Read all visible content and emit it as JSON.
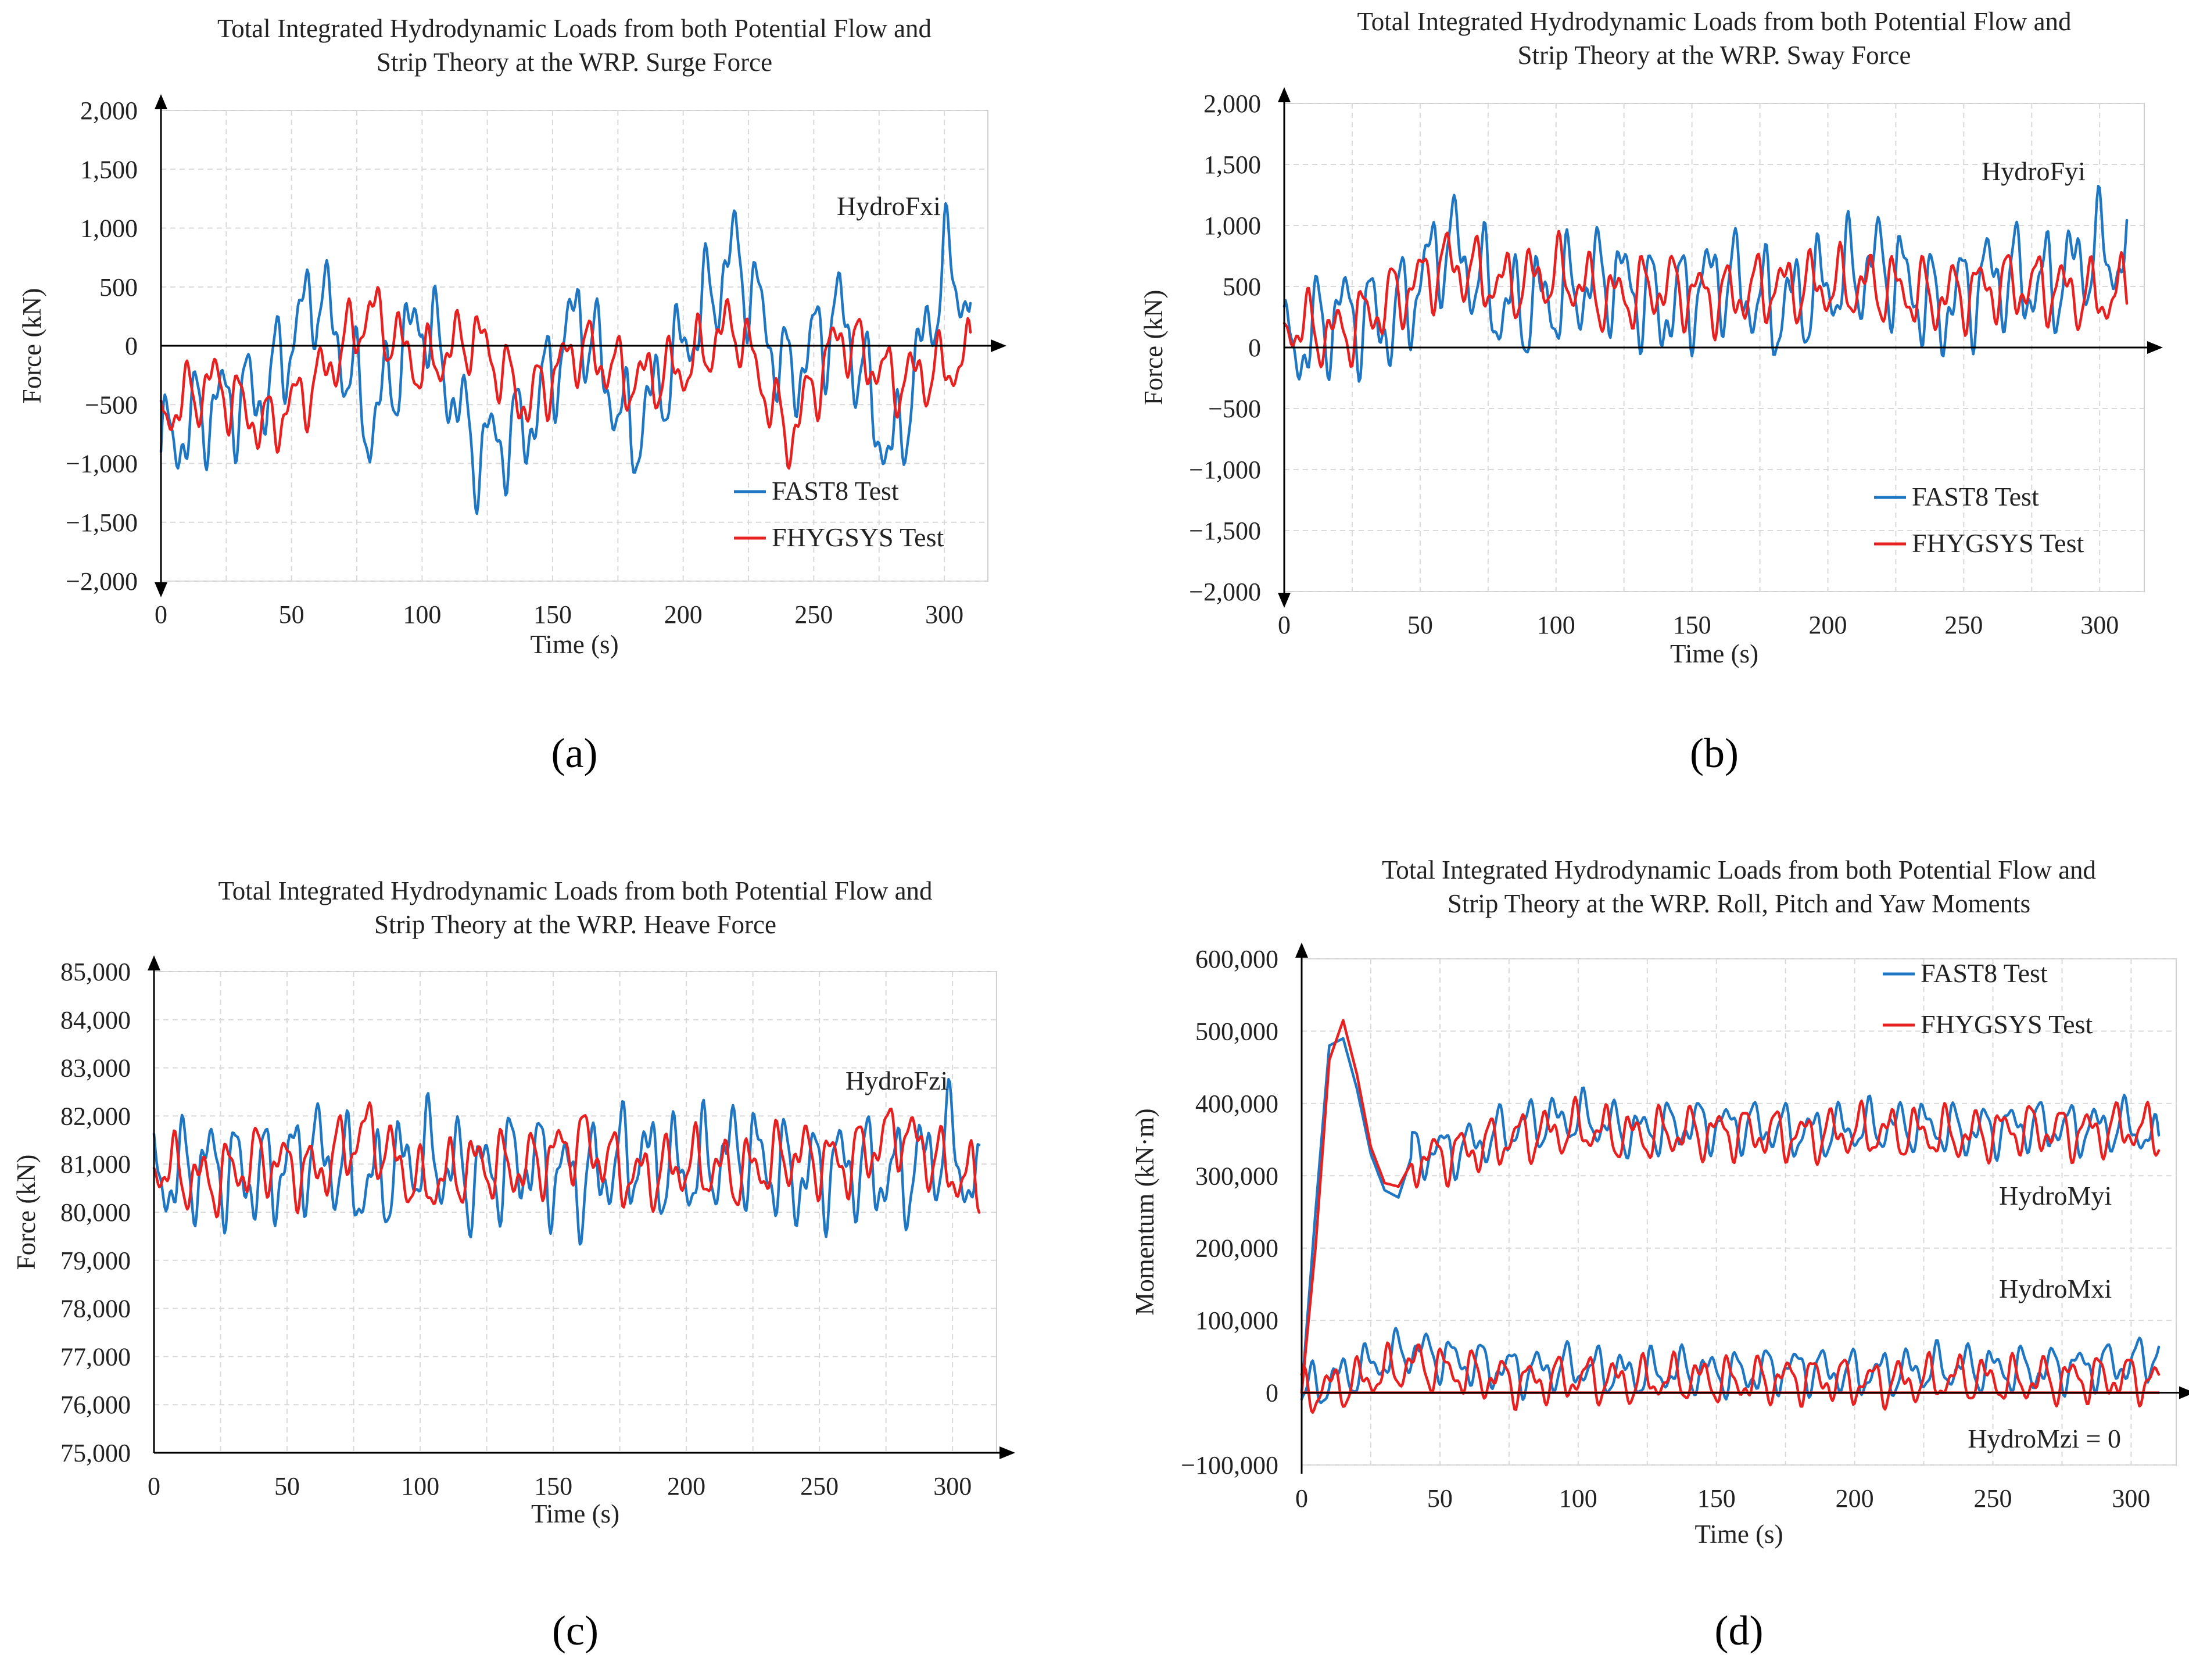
{
  "colors": {
    "fast8": "#1f77c4",
    "fhygsys": "#e8201f",
    "note": "#777777"
  },
  "chart_data": [
    {
      "type": "line",
      "caption": "(a)",
      "title_lines": [
        "Total Integrated Hydrodynamic Loads from both Potential Flow and",
        "Strip Theory at the WRP. Surge Force"
      ],
      "xlabel": "Time (s)",
      "ylabel": "Force (kN)",
      "xlim": [
        0,
        310
      ],
      "ylim": [
        -2000,
        2000
      ],
      "xticks": [
        0,
        50,
        100,
        150,
        200,
        250,
        300
      ],
      "yticks": [
        -2000,
        -1500,
        -1000,
        -500,
        0,
        500,
        1000,
        1500,
        2000
      ],
      "ytick_labels": [
        "−2,000",
        "−1,500",
        "−1,000",
        "−500",
        "0",
        "500",
        "1,000",
        "1,500",
        "2,000"
      ],
      "grid": true,
      "annotations": [
        {
          "text": "HydroFxi"
        }
      ],
      "legend": [
        "FAST8 Test",
        "FHYGSYS Test"
      ],
      "legend_position": "bottom-right",
      "series": [
        {
          "name": "FAST8 Test",
          "x": [
            0,
            20,
            40,
            60,
            80,
            100,
            120,
            140,
            160,
            180,
            200,
            220,
            240,
            260,
            280,
            300,
            310
          ],
          "y": [
            -900,
            -500,
            -400,
            500,
            -700,
            300,
            -900,
            -700,
            300,
            -800,
            0,
            800,
            -300,
            300,
            -1000,
            700,
            400
          ]
        },
        {
          "name": "FHYGSYS Test",
          "x": [
            0,
            20,
            40,
            60,
            80,
            100,
            120,
            140,
            160,
            180,
            200,
            220,
            240,
            260,
            280,
            300,
            310
          ],
          "y": [
            -600,
            -300,
            -700,
            -300,
            300,
            -200,
            100,
            -500,
            0,
            -300,
            -200,
            200,
            -800,
            100,
            -300,
            -200,
            -100
          ]
        }
      ]
    },
    {
      "type": "line",
      "caption": "(b)",
      "title_lines": [
        "Total Integrated Hydrodynamic Loads from both Potential Flow and",
        "Strip Theory at the WRP. Sway Force"
      ],
      "xlabel": "Time (s)",
      "ylabel": "Force (kN)",
      "xlim": [
        0,
        310
      ],
      "ylim": [
        -2000,
        2000
      ],
      "xticks": [
        0,
        50,
        100,
        150,
        200,
        250,
        300
      ],
      "yticks": [
        -2000,
        -1500,
        -1000,
        -500,
        0,
        500,
        1000,
        1500,
        2000
      ],
      "ytick_labels": [
        "−2,000",
        "−1,500",
        "−1,000",
        "−500",
        "0",
        "500",
        "1,000",
        "1,500",
        "2,000"
      ],
      "grid": true,
      "annotations": [
        {
          "text": "HydroFyi"
        }
      ],
      "legend": [
        "FAST8 Test",
        "FHYGSYS Test"
      ],
      "legend_position": "bottom-right",
      "series": [
        {
          "name": "FAST8 Test",
          "x": [
            0,
            20,
            40,
            60,
            80,
            100,
            120,
            140,
            160,
            180,
            200,
            220,
            240,
            260,
            280,
            300,
            310
          ],
          "y": [
            -100,
            300,
            200,
            900,
            300,
            400,
            600,
            300,
            600,
            300,
            500,
            700,
            300,
            600,
            500,
            800,
            700
          ]
        },
        {
          "name": "FHYGSYS Test",
          "x": [
            0,
            20,
            40,
            60,
            80,
            100,
            120,
            140,
            160,
            180,
            200,
            220,
            240,
            260,
            280,
            300,
            310
          ],
          "y": [
            200,
            100,
            400,
            700,
            500,
            600,
            400,
            500,
            400,
            500,
            500,
            500,
            400,
            500,
            500,
            400,
            450
          ]
        }
      ]
    },
    {
      "type": "line",
      "caption": "(c)",
      "title_lines": [
        "Total Integrated Hydrodynamic Loads from both Potential Flow and",
        "Strip Theory at the WRP. Heave Force"
      ],
      "xlabel": "Time (s)",
      "ylabel": "Force (kN)",
      "xlim": [
        0,
        310
      ],
      "ylim": [
        75000,
        85000
      ],
      "xticks": [
        0,
        50,
        100,
        150,
        200,
        250,
        300
      ],
      "yticks": [
        75000,
        76000,
        77000,
        78000,
        79000,
        80000,
        81000,
        82000,
        83000,
        84000,
        85000
      ],
      "ytick_labels": [
        "75,000",
        "76,000",
        "77,000",
        "78,000",
        "79,000",
        "80,000",
        "81,000",
        "82,000",
        "83,000",
        "84,000",
        "85,000"
      ],
      "grid": true,
      "annotations": [
        {
          "text": "HydroFzi"
        }
      ],
      "legend": [],
      "series": [
        {
          "name": "FAST8 Test",
          "x": [
            0,
            20,
            40,
            60,
            80,
            100,
            120,
            140,
            160,
            180,
            200,
            220,
            240,
            260,
            280,
            300,
            310
          ],
          "y": [
            80600,
            81000,
            80700,
            81300,
            80500,
            81200,
            80700,
            81100,
            80600,
            81200,
            80800,
            81300,
            80700,
            81000,
            80700,
            81500,
            80100
          ]
        },
        {
          "name": "FHYGSYS Test",
          "x": [
            0,
            20,
            40,
            60,
            80,
            100,
            120,
            140,
            160,
            180,
            200,
            220,
            240,
            260,
            280,
            300,
            310
          ],
          "y": [
            81000,
            80600,
            81100,
            80800,
            81700,
            80500,
            81000,
            80900,
            81500,
            80700,
            81000,
            80800,
            81200,
            81000,
            81700,
            80800,
            80600
          ]
        }
      ]
    },
    {
      "type": "line",
      "caption": "(d)",
      "title_lines": [
        "Total Integrated Hydrodynamic Loads from both Potential Flow and",
        "Strip Theory at the WRP. Roll, Pitch and Yaw Moments"
      ],
      "xlabel": "Time (s)",
      "ylabel": "Momentum (kN·m)",
      "xlim": [
        0,
        310
      ],
      "ylim": [
        -100000,
        600000
      ],
      "xticks": [
        0,
        50,
        100,
        150,
        200,
        250,
        300
      ],
      "yticks": [
        -100000,
        0,
        100000,
        200000,
        300000,
        400000,
        500000,
        600000
      ],
      "ytick_labels": [
        "−100,000",
        "0",
        "100,000",
        "200,000",
        "300,000",
        "400,000",
        "500,000",
        "600,000"
      ],
      "grid": true,
      "annotations": [
        {
          "text": "HydroMyi"
        },
        {
          "text": "HydroMxi"
        },
        {
          "text": "HydroMzi = 0"
        }
      ],
      "legend": [
        "FAST8 Test",
        "FHYGSYS Test"
      ],
      "legend_position": "top-right",
      "series": [
        {
          "name": "FAST8 Test (HydroMyi)",
          "x": [
            0,
            5,
            10,
            15,
            20,
            25,
            30,
            35,
            40,
            60,
            80,
            100,
            120,
            140,
            160,
            180,
            200,
            220,
            240,
            260,
            280,
            300,
            310
          ],
          "y": [
            0,
            250000,
            480000,
            490000,
            420000,
            330000,
            280000,
            270000,
            330000,
            340000,
            370000,
            380000,
            360000,
            370000,
            370000,
            360000,
            365000,
            370000,
            360000,
            370000,
            365000,
            370000,
            340000
          ]
        },
        {
          "name": "FHYGSYS Test (HydroMyi)",
          "x": [
            0,
            5,
            10,
            15,
            20,
            25,
            30,
            35,
            40,
            60,
            80,
            100,
            120,
            140,
            160,
            180,
            200,
            220,
            240,
            260,
            280,
            300,
            310
          ],
          "y": [
            0,
            200000,
            460000,
            515000,
            440000,
            340000,
            290000,
            285000,
            320000,
            335000,
            355000,
            365000,
            355000,
            360000,
            360000,
            355000,
            360000,
            360000,
            355000,
            365000,
            360000,
            365000,
            360000
          ]
        },
        {
          "name": "FAST8 Test (HydroMxi)",
          "x": [
            0,
            20,
            40,
            60,
            80,
            100,
            120,
            140,
            160,
            180,
            200,
            220,
            240,
            260,
            280,
            300,
            310
          ],
          "y": [
            0,
            30000,
            60000,
            40000,
            30000,
            35000,
            25000,
            30000,
            25000,
            35000,
            25000,
            30000,
            35000,
            30000,
            35000,
            40000,
            55000
          ]
        },
        {
          "name": "FHYGSYS Test (HydroMxi)",
          "x": [
            0,
            20,
            40,
            60,
            80,
            100,
            120,
            140,
            160,
            180,
            200,
            220,
            240,
            260,
            280,
            300,
            310
          ],
          "y": [
            0,
            15000,
            40000,
            25000,
            15000,
            20000,
            15000,
            20000,
            15000,
            20000,
            15000,
            15000,
            20000,
            15000,
            20000,
            20000,
            15000
          ]
        },
        {
          "name": "HydroMzi",
          "x": [
            0,
            310
          ],
          "y": [
            0,
            0
          ]
        }
      ]
    }
  ]
}
